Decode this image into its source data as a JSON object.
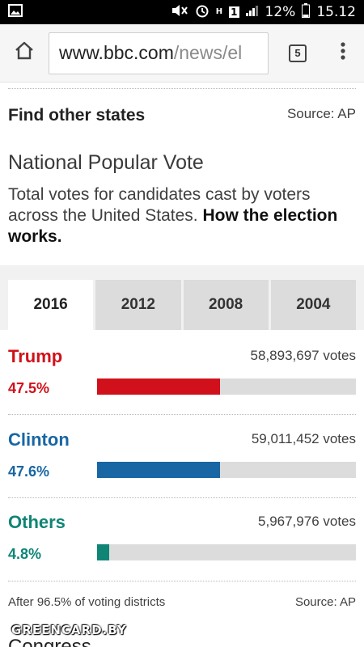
{
  "status_bar": {
    "battery": "12%",
    "time": "15.12",
    "network_badge": "1",
    "network_letter": "H"
  },
  "browser": {
    "url_host": "www.bbc.com",
    "url_path": "/news/el",
    "tab_count": "5"
  },
  "page": {
    "find_states": "Find other states",
    "source_top": "Source: AP",
    "title": "National Popular Vote",
    "description": "Total votes for candidates cast by voters across the United States.",
    "how_link": "How the election works."
  },
  "tabs": [
    "2016",
    "2012",
    "2008",
    "2004"
  ],
  "active_tab": "2016",
  "candidates": [
    {
      "name": "Trump",
      "votes": "58,893,697 votes",
      "pct_label": "47.5%",
      "pct": 47.5,
      "color": "#d0111b"
    },
    {
      "name": "Clinton",
      "votes": "59,011,452 votes",
      "pct_label": "47.6%",
      "pct": 47.6,
      "color": "#1866a4"
    },
    {
      "name": "Others",
      "votes": "5,967,976 votes",
      "pct_label": "4.8%",
      "pct": 4.8,
      "color": "#0f8576"
    }
  ],
  "footer": {
    "note": "After 96.5% of voting districts",
    "source": "Source: AP",
    "next_heading": "Congress"
  },
  "watermark": "GREENCARD.BY"
}
